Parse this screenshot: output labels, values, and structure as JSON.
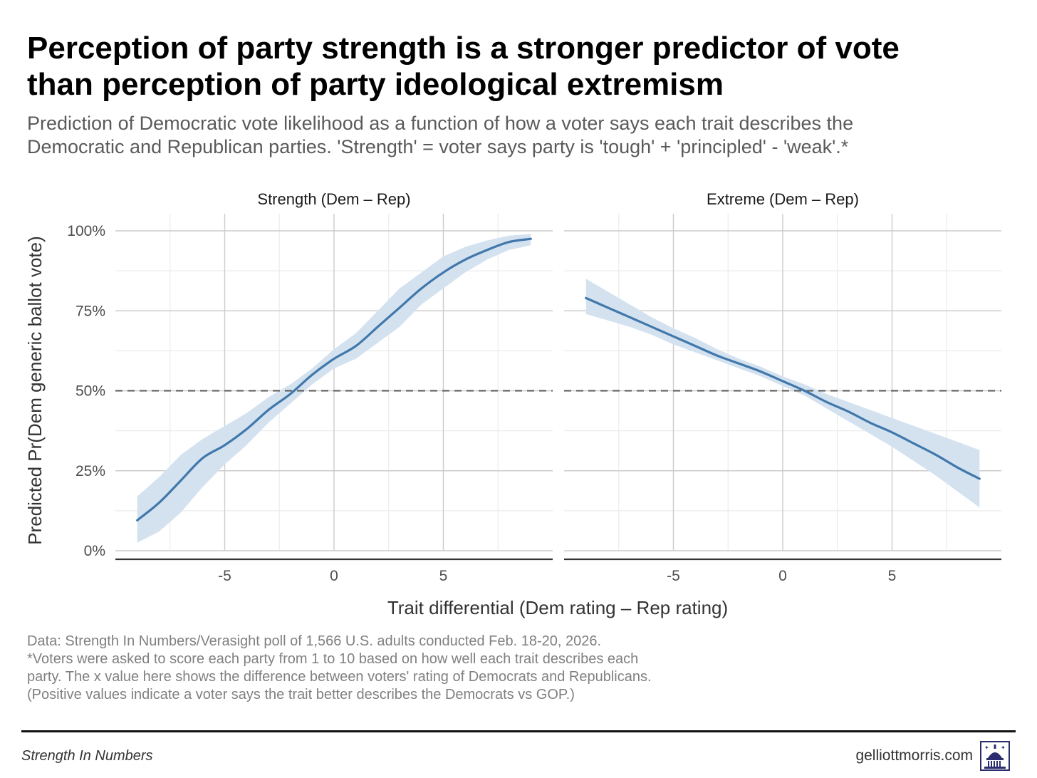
{
  "title_line1": "Perception of party strength is a stronger predictor of vote",
  "title_line2": "than perception of party ideological extremism",
  "subtitle_line1": "Prediction of Democratic vote likelihood as a function of how a voter says each trait describes the",
  "subtitle_line2": "Democratic and Republican parties. 'Strength' = voter says party is 'tough' + 'principled' - 'weak'.*",
  "caption_lines": [
    "Data: Strength In Numbers/Verasight poll of 1,566 U.S. adults conducted Feb. 18-20, 2026.",
    "*Voters were asked to score each party from 1 to 10 based on how well each trait describes each",
    "party. The x value here shows the difference between voters' rating of Democrats and Republicans.",
    "(Positive values indicate a voter says the trait better describes the Democrats vs GOP.)"
  ],
  "footer": {
    "left": "Strength In Numbers",
    "right": "gelliottmorris.com",
    "logo_icon": "capitol-dome-icon"
  },
  "colors": {
    "line": "#4178ab",
    "ribbon": "#d4e2f0",
    "reference_line": "#555555",
    "grid_major": "#cccccc",
    "grid_minor": "#ebebeb"
  },
  "chart_data": [
    {
      "type": "line",
      "panel": "Strength (Dem – Rep)",
      "xlabel": "Trait differential (Dem rating – Rep rating)",
      "ylabel": "Predicted Pr(Dem generic ballot vote)",
      "xlim": [
        -10,
        10
      ],
      "ylim": [
        0,
        1
      ],
      "x_ticks": [
        -5,
        0,
        5
      ],
      "x_tick_labels": [
        "-5",
        "0",
        "5"
      ],
      "y_ticks": [
        0,
        0.25,
        0.5,
        0.75,
        1
      ],
      "y_tick_labels": [
        "0%",
        "25%",
        "50%",
        "75%",
        "100%"
      ],
      "reference_line": {
        "y": 0.5,
        "style": "dashed"
      },
      "grid": true,
      "series": [
        {
          "x": [
            -9,
            -8,
            -7,
            -6,
            -5,
            -4,
            -3,
            -2,
            -1,
            0,
            1,
            2,
            3,
            4,
            5,
            6,
            7,
            8,
            9
          ],
          "y": [
            0.095,
            0.15,
            0.22,
            0.29,
            0.33,
            0.38,
            0.44,
            0.49,
            0.55,
            0.6,
            0.64,
            0.7,
            0.76,
            0.82,
            0.87,
            0.91,
            0.94,
            0.965,
            0.975
          ],
          "lower": [
            0.025,
            0.06,
            0.12,
            0.2,
            0.27,
            0.33,
            0.4,
            0.46,
            0.52,
            0.57,
            0.6,
            0.65,
            0.7,
            0.77,
            0.82,
            0.87,
            0.91,
            0.94,
            0.955
          ],
          "upper": [
            0.17,
            0.23,
            0.3,
            0.35,
            0.39,
            0.43,
            0.48,
            0.52,
            0.57,
            0.63,
            0.68,
            0.75,
            0.82,
            0.87,
            0.92,
            0.95,
            0.97,
            0.985,
            0.99
          ]
        }
      ]
    },
    {
      "type": "line",
      "panel": "Extreme (Dem – Rep)",
      "xlabel": "Trait differential (Dem rating – Rep rating)",
      "ylabel": "Predicted Pr(Dem generic ballot vote)",
      "xlim": [
        -10,
        10
      ],
      "ylim": [
        0,
        1
      ],
      "x_ticks": [
        -5,
        0,
        5
      ],
      "x_tick_labels": [
        "-5",
        "0",
        "5"
      ],
      "y_ticks": [
        0,
        0.25,
        0.5,
        0.75,
        1
      ],
      "y_tick_labels": [
        "0%",
        "25%",
        "50%",
        "75%",
        "100%"
      ],
      "reference_line": {
        "y": 0.5,
        "style": "dashed"
      },
      "grid": true,
      "series": [
        {
          "x": [
            -9,
            -8,
            -7,
            -6,
            -5,
            -4,
            -3,
            -2,
            -1,
            0,
            1,
            2,
            3,
            4,
            5,
            6,
            7,
            8,
            9
          ],
          "y": [
            0.79,
            0.76,
            0.73,
            0.7,
            0.67,
            0.64,
            0.61,
            0.585,
            0.56,
            0.53,
            0.5,
            0.465,
            0.435,
            0.4,
            0.37,
            0.335,
            0.3,
            0.26,
            0.225
          ],
          "lower": [
            0.74,
            0.72,
            0.7,
            0.675,
            0.645,
            0.62,
            0.595,
            0.57,
            0.545,
            0.515,
            0.485,
            0.445,
            0.405,
            0.365,
            0.325,
            0.28,
            0.235,
            0.185,
            0.135
          ],
          "upper": [
            0.85,
            0.81,
            0.77,
            0.73,
            0.695,
            0.665,
            0.63,
            0.6,
            0.575,
            0.545,
            0.52,
            0.49,
            0.465,
            0.44,
            0.415,
            0.39,
            0.365,
            0.34,
            0.315
          ]
        }
      ]
    }
  ]
}
